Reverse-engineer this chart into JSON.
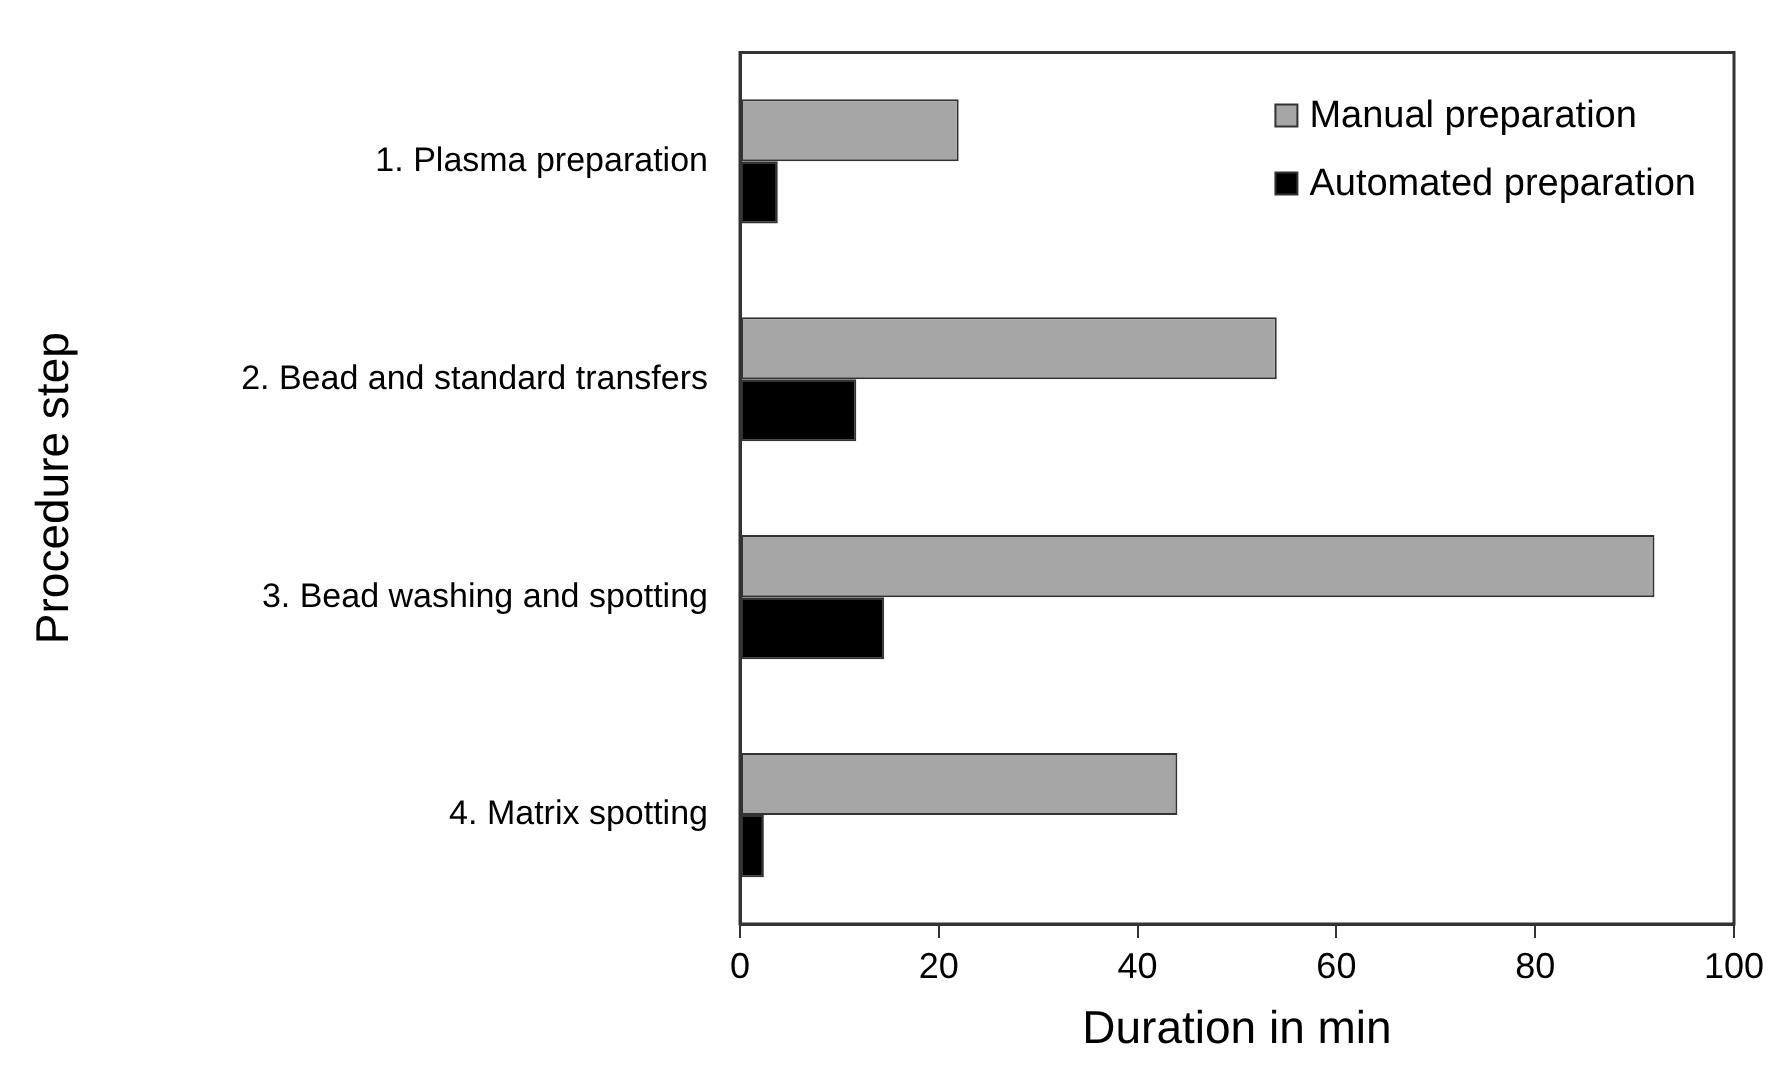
{
  "chart_data": {
    "type": "bar",
    "orientation": "horizontal",
    "xlabel": "Duration in min",
    "ylabel": "Procedure step",
    "categories": [
      "1. Plasma preparation",
      "2. Bead and standard transfers",
      "3. Bead washing and spotting",
      "4. Matrix spotting"
    ],
    "series": [
      {
        "name": "Manual preparation",
        "color": "#a6a6a6",
        "values": [
          22,
          54,
          92,
          44
        ]
      },
      {
        "name": "Automated preparation",
        "color": "#000000",
        "values": [
          3.8,
          11.7,
          14.5,
          2.4
        ]
      }
    ],
    "xlim": [
      0,
      100
    ],
    "xticks": [
      0,
      20,
      40,
      60,
      80,
      100
    ],
    "grid": false,
    "legend": "top right"
  }
}
